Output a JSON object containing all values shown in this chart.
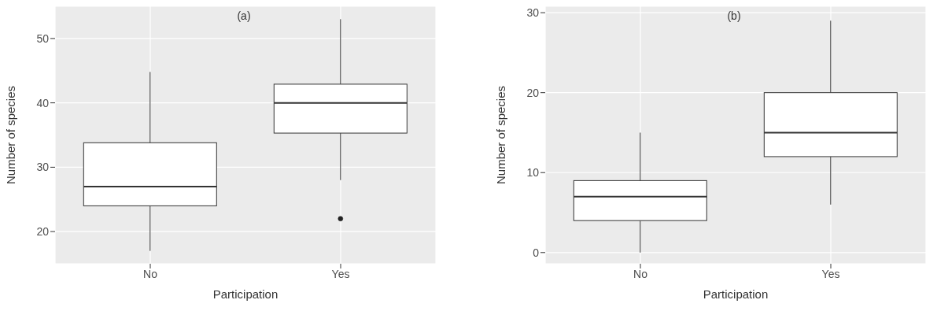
{
  "chart_data": [
    {
      "type": "box",
      "title": "(a)",
      "xlabel": "Participation",
      "ylabel": "Number of species",
      "categories": [
        "No",
        "Yes"
      ],
      "ylim": [
        15,
        55
      ],
      "yticks": [
        20,
        30,
        40,
        50
      ],
      "grid": true,
      "boxes": [
        {
          "low": 17,
          "q1": 24,
          "median": 27,
          "q3": 33.8,
          "high": 44.8
        },
        {
          "low": 28,
          "q1": 35.3,
          "median": 40,
          "q3": 42.9,
          "high": 53,
          "outliers": [
            22
          ]
        }
      ]
    },
    {
      "type": "box",
      "title": "(b)",
      "xlabel": "Participation",
      "ylabel": "Number of species",
      "categories": [
        "No",
        "Yes"
      ],
      "ylim": [
        -1.4,
        30.8
      ],
      "yticks": [
        0,
        10,
        20,
        30
      ],
      "grid": true,
      "boxes": [
        {
          "low": 0,
          "q1": 4,
          "median": 7,
          "q3": 9,
          "high": 15
        },
        {
          "low": 6,
          "q1": 12,
          "median": 15,
          "q3": 20,
          "high": 29
        }
      ]
    }
  ]
}
